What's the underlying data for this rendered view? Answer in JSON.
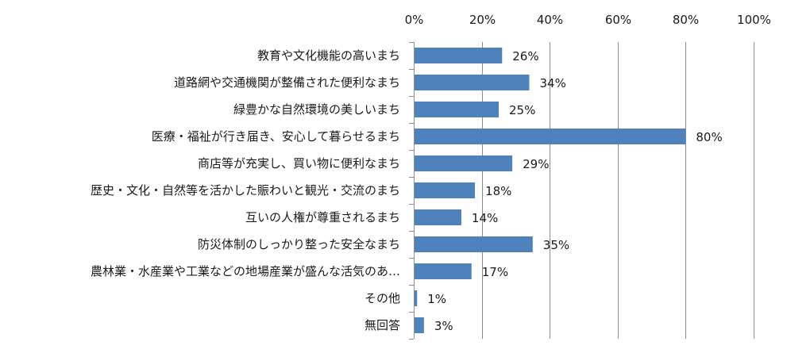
{
  "chart_data": {
    "type": "bar",
    "orientation": "horizontal",
    "title": "",
    "xlabel": "",
    "ylabel": "",
    "xlim": [
      0,
      100
    ],
    "x_ticks": [
      0,
      20,
      40,
      60,
      80,
      100
    ],
    "x_tick_labels": [
      "0%",
      "20%",
      "40%",
      "60%",
      "80%",
      "100%"
    ],
    "x_axis_position": "top",
    "grid": true,
    "legend": "none",
    "bar_color": "#4f81bd",
    "categories": [
      "教育や文化機能の高いまち",
      "道路網や交通機関が整備された便利なまち",
      "緑豊かな自然環境の美しいまち",
      "医療・福祉が行き届き、安心して暮らせるまち",
      "商店等が充実し、買い物に便利なまち",
      "歴史・文化・自然等を活かした賑わいと観光・交流のまち",
      "互いの人権が尊重されるまち",
      "防災体制のしっかり整った安全なまち",
      "農林業・水産業や工業などの地場産業が盛んな活気のあ…",
      "その他",
      "無回答"
    ],
    "values": [
      26,
      34,
      25,
      80,
      29,
      18,
      14,
      35,
      17,
      1,
      3
    ],
    "value_labels": [
      "26%",
      "34%",
      "25%",
      "80%",
      "29%",
      "18%",
      "14%",
      "35%",
      "17%",
      "1%",
      "3%"
    ]
  }
}
